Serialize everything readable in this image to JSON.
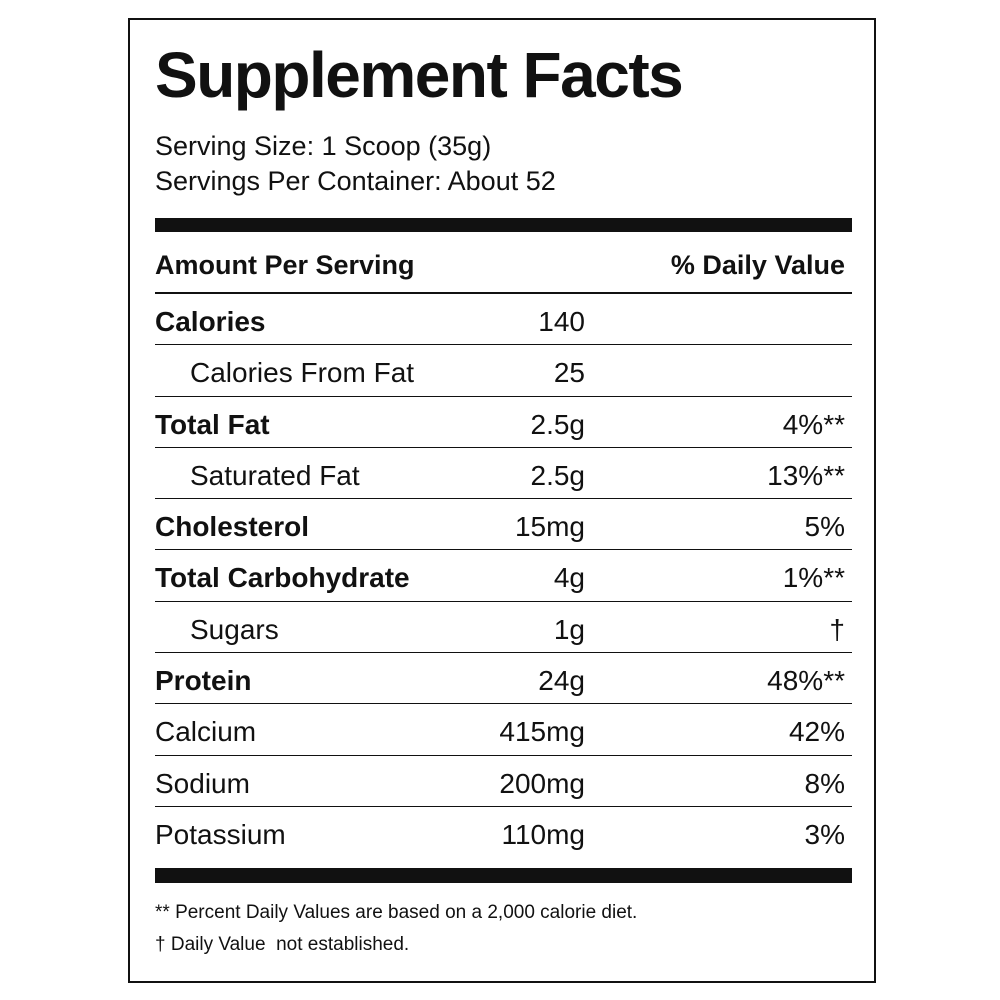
{
  "title": "Supplement Facts",
  "serving_size": "Serving Size: 1 Scoop (35g)",
  "servings_per_container": "Servings Per Container: About 52",
  "table": {
    "header": [
      "Amount Per Serving",
      "% Daily Value"
    ],
    "rows": [
      [
        "Calories",
        "140"
      ],
      [
        "Calories From Fat",
        "25"
      ],
      [
        "Total Fat",
        "2.5g",
        "4%**"
      ],
      [
        "Saturated Fat",
        "2.5g",
        "13%**"
      ],
      [
        "Cholesterol",
        "15mg",
        "5%"
      ],
      [
        "Total Carbohydrate",
        "4g",
        "1%**"
      ],
      [
        "Sugars",
        "1g",
        "†"
      ],
      [
        "Protein",
        "24g",
        "48%**"
      ],
      [
        "Calcium",
        "415mg",
        "42%"
      ],
      [
        "Sodium",
        "200mg",
        "8%"
      ],
      [
        "Potassium",
        "110mg",
        "3%"
      ]
    ]
  },
  "footnotes": [
    "** Percent Daily Values are based on a 2,000 calorie diet.",
    "† Daily Value  not established."
  ]
}
